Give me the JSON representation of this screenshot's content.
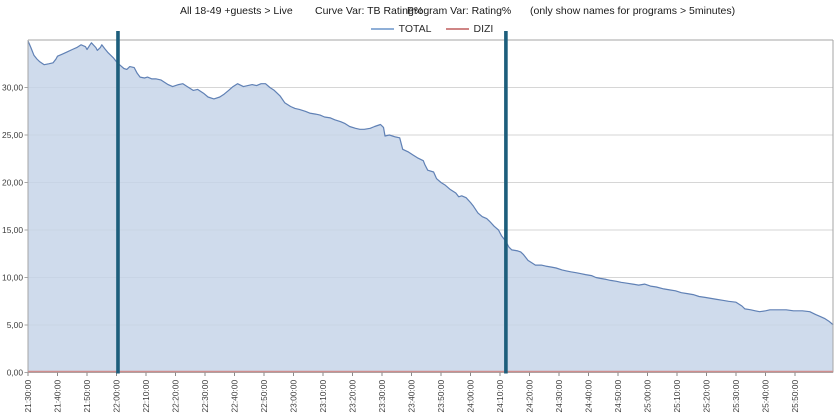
{
  "header": {
    "audience": "All 18-49 +guests > Live",
    "curve_var": "Curve Var: TB Rating%",
    "program_var": "Program Var: Rating%",
    "note": "(only show names for programs > 5minutes)"
  },
  "legend": [
    {
      "label": "TOTAL",
      "color": "#8fafd7"
    },
    {
      "label": "DIZI",
      "color": "#cf8585"
    }
  ],
  "colors": {
    "grid": "#d6d6d6",
    "border": "#a6a6a6",
    "axis_text": "#3c3c3c",
    "tick": "#8a8a8a",
    "reference_line": "#1d5e7c"
  },
  "chart_data": {
    "type": "area",
    "title": "",
    "xlabel": "",
    "ylabel": "",
    "x_axis": {
      "tick_labels": [
        "21:30:00",
        "21:40:00",
        "21:50:00",
        "22:00:00",
        "22:10:00",
        "22:20:00",
        "22:30:00",
        "22:40:00",
        "22:50:00",
        "23:00:00",
        "23:10:00",
        "23:20:00",
        "23:30:00",
        "23:40:00",
        "23:50:00",
        "24:00:00",
        "24:10:00",
        "24:20:00",
        "24:30:00",
        "24:40:00",
        "24:50:00",
        "25:00:00",
        "25:10:00",
        "25:20:00",
        "25:30:00",
        "25:40:00",
        "25:50:00"
      ],
      "tick_minutes": [
        0,
        10,
        20,
        30,
        40,
        50,
        60,
        70,
        80,
        90,
        100,
        110,
        120,
        130,
        140,
        150,
        160,
        170,
        180,
        190,
        200,
        210,
        220,
        230,
        240,
        250,
        260
      ],
      "minute_range": [
        0,
        273
      ]
    },
    "y_axis": {
      "ylim": [
        0,
        35
      ],
      "tick_values": [
        0,
        5,
        10,
        15,
        20,
        25,
        30
      ],
      "tick_labels": [
        "0,00",
        "5,00",
        "10,00",
        "15,00",
        "20,00",
        "25,00",
        "30,00"
      ]
    },
    "grid": "horizontal",
    "legend_position": "top-center",
    "reference_lines": [
      {
        "at_time": "22:00:00",
        "minute": 30.5,
        "color": "#1d5e7c"
      },
      {
        "at_time": "24:10:00",
        "minute": 162,
        "color": "#1d5e7c"
      }
    ],
    "series": [
      {
        "name": "TOTAL",
        "stroke": "#6081b5",
        "fill": "#c5d3e8",
        "points": [
          [
            0,
            34.9
          ],
          [
            1,
            34.2
          ],
          [
            2,
            33.4
          ],
          [
            3,
            33.0
          ],
          [
            4,
            32.7
          ],
          [
            5.5,
            32.4
          ],
          [
            7,
            32.5
          ],
          [
            8.5,
            32.6
          ],
          [
            9.5,
            33.0
          ],
          [
            10,
            33.3
          ],
          [
            11.5,
            33.5
          ],
          [
            13,
            33.7
          ],
          [
            15,
            34.0
          ],
          [
            16.5,
            34.2
          ],
          [
            18,
            34.5
          ],
          [
            19.5,
            34.3
          ],
          [
            20,
            34.0
          ],
          [
            21,
            34.5
          ],
          [
            21.5,
            34.7
          ],
          [
            23,
            34.2
          ],
          [
            23.5,
            33.9
          ],
          [
            24.5,
            34.2
          ],
          [
            25,
            34.5
          ],
          [
            26,
            34.1
          ],
          [
            27,
            33.7
          ],
          [
            29,
            33.1
          ],
          [
            30,
            32.7
          ],
          [
            31,
            32.4
          ],
          [
            32.5,
            32.0
          ],
          [
            33.5,
            31.9
          ],
          [
            34.5,
            32.2
          ],
          [
            36,
            32.1
          ],
          [
            37,
            31.5
          ],
          [
            38,
            31.1
          ],
          [
            39.5,
            31.0
          ],
          [
            40.5,
            31.1
          ],
          [
            42,
            30.9
          ],
          [
            43.5,
            30.9
          ],
          [
            45,
            30.8
          ],
          [
            47.5,
            30.3
          ],
          [
            49,
            30.1
          ],
          [
            51,
            30.3
          ],
          [
            52.5,
            30.4
          ],
          [
            54,
            30.1
          ],
          [
            56,
            29.7
          ],
          [
            57.5,
            29.8
          ],
          [
            59.5,
            29.4
          ],
          [
            61,
            29.0
          ],
          [
            63,
            28.8
          ],
          [
            65,
            29.0
          ],
          [
            66.5,
            29.3
          ],
          [
            68,
            29.7
          ],
          [
            69.5,
            30.1
          ],
          [
            71,
            30.4
          ],
          [
            73,
            30.1
          ],
          [
            74.5,
            30.2
          ],
          [
            76,
            30.3
          ],
          [
            77.5,
            30.2
          ],
          [
            79,
            30.4
          ],
          [
            80.5,
            30.4
          ],
          [
            82,
            30.0
          ],
          [
            83.5,
            29.7
          ],
          [
            85.5,
            29.1
          ],
          [
            87,
            28.4
          ],
          [
            89,
            28.0
          ],
          [
            90.5,
            27.8
          ],
          [
            92,
            27.7
          ],
          [
            94,
            27.5
          ],
          [
            95.5,
            27.3
          ],
          [
            97.5,
            27.2
          ],
          [
            99,
            27.1
          ],
          [
            100.5,
            26.9
          ],
          [
            102.5,
            26.8
          ],
          [
            104,
            26.6
          ],
          [
            106,
            26.4
          ],
          [
            107.5,
            26.2
          ],
          [
            109,
            25.9
          ],
          [
            111,
            25.7
          ],
          [
            112.5,
            25.6
          ],
          [
            114,
            25.6
          ],
          [
            116,
            25.7
          ],
          [
            117.5,
            25.9
          ],
          [
            119.5,
            26.1
          ],
          [
            120.5,
            25.8
          ],
          [
            121,
            24.9
          ],
          [
            122.5,
            25.0
          ],
          [
            124.5,
            24.8
          ],
          [
            126,
            24.7
          ],
          [
            127,
            23.5
          ],
          [
            129,
            23.2
          ],
          [
            130.5,
            22.9
          ],
          [
            132,
            22.6
          ],
          [
            134,
            22.3
          ],
          [
            134.5,
            21.9
          ],
          [
            135.5,
            21.3
          ],
          [
            137.5,
            21.1
          ],
          [
            138.5,
            20.4
          ],
          [
            140,
            20.0
          ],
          [
            141.5,
            19.7
          ],
          [
            143,
            19.3
          ],
          [
            145,
            18.9
          ],
          [
            146,
            18.5
          ],
          [
            147,
            18.6
          ],
          [
            148.5,
            18.4
          ],
          [
            150,
            17.9
          ],
          [
            151,
            17.5
          ],
          [
            152.5,
            16.8
          ],
          [
            154,
            16.4
          ],
          [
            155.5,
            16.2
          ],
          [
            156.5,
            15.9
          ],
          [
            158,
            15.4
          ],
          [
            159.5,
            15.0
          ],
          [
            160.5,
            14.4
          ],
          [
            162,
            13.8
          ],
          [
            163,
            13.2
          ],
          [
            164,
            12.9
          ],
          [
            166,
            12.8
          ],
          [
            167,
            12.7
          ],
          [
            168,
            12.4
          ],
          [
            169.5,
            11.8
          ],
          [
            171,
            11.5
          ],
          [
            172,
            11.3
          ],
          [
            174,
            11.3
          ],
          [
            175.5,
            11.2
          ],
          [
            177.5,
            11.1
          ],
          [
            179,
            11.0
          ],
          [
            181,
            10.8
          ],
          [
            182.5,
            10.7
          ],
          [
            184,
            10.6
          ],
          [
            186,
            10.5
          ],
          [
            187.5,
            10.4
          ],
          [
            189,
            10.3
          ],
          [
            191,
            10.2
          ],
          [
            192.5,
            10.0
          ],
          [
            194,
            9.9
          ],
          [
            196,
            9.8
          ],
          [
            197.5,
            9.7
          ],
          [
            199.5,
            9.6
          ],
          [
            201,
            9.5
          ],
          [
            203,
            9.4
          ],
          [
            205,
            9.3
          ],
          [
            207,
            9.2
          ],
          [
            209,
            9.3
          ],
          [
            211,
            9.1
          ],
          [
            213,
            9.0
          ],
          [
            215.5,
            8.8
          ],
          [
            217.5,
            8.7
          ],
          [
            219.5,
            8.6
          ],
          [
            221.5,
            8.4
          ],
          [
            223.5,
            8.3
          ],
          [
            225.5,
            8.2
          ],
          [
            227.5,
            8.0
          ],
          [
            229.5,
            7.9
          ],
          [
            231.5,
            7.8
          ],
          [
            233.5,
            7.7
          ],
          [
            235.5,
            7.6
          ],
          [
            237.5,
            7.5
          ],
          [
            240,
            7.4
          ],
          [
            242,
            7.0
          ],
          [
            243,
            6.7
          ],
          [
            245,
            6.6
          ],
          [
            246.5,
            6.5
          ],
          [
            248,
            6.4
          ],
          [
            250,
            6.5
          ],
          [
            251.5,
            6.6
          ],
          [
            254,
            6.6
          ],
          [
            257,
            6.6
          ],
          [
            259.5,
            6.5
          ],
          [
            262.5,
            6.5
          ],
          [
            265,
            6.4
          ],
          [
            267,
            6.1
          ],
          [
            268.5,
            5.9
          ],
          [
            270,
            5.7
          ],
          [
            271.5,
            5.4
          ],
          [
            273,
            5.0
          ]
        ]
      },
      {
        "name": "DIZI",
        "stroke": "#cf8e8e",
        "fill": null,
        "points": [
          [
            0,
            0
          ],
          [
            273,
            0
          ]
        ]
      }
    ]
  }
}
